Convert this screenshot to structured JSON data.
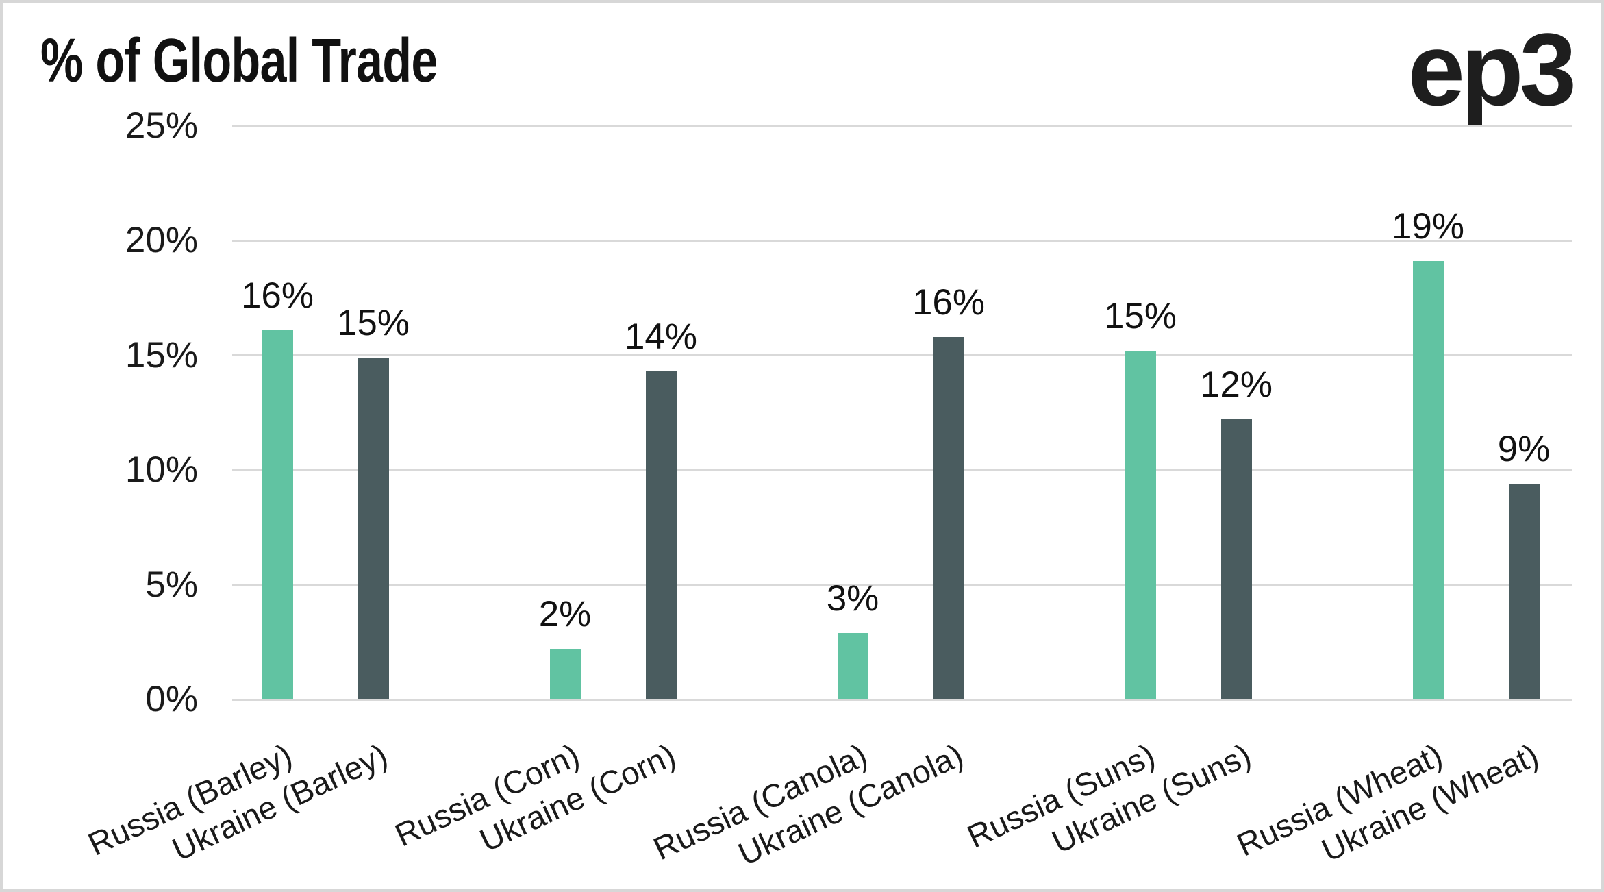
{
  "logo": {
    "text": "ep3"
  },
  "chart_data": {
    "type": "bar",
    "title": "% of Global Trade",
    "categories": [
      "Russia (Barley)",
      "Ukraine (Barley)",
      "Russia (Corn)",
      "Ukraine (Corn)",
      "Russia (Canola)",
      "Ukraine (Canola)",
      "Russia (Suns)",
      "Ukraine (Suns)",
      "Russia (Wheat)",
      "Ukraine (Wheat)"
    ],
    "values": [
      16,
      15,
      2,
      14,
      3,
      16,
      15,
      12,
      19,
      9
    ],
    "value_labels": [
      "16%",
      "15%",
      "2%",
      "14%",
      "3%",
      "16%",
      "15%",
      "12%",
      "19%",
      "9%"
    ],
    "values_precise": [
      16.1,
      14.9,
      2.2,
      14.3,
      2.9,
      15.8,
      15.2,
      12.2,
      19.1,
      9.4
    ],
    "bar_colors": [
      "#61C3A2",
      "#4A5C5F",
      "#61C3A2",
      "#4A5C5F",
      "#61C3A2",
      "#4A5C5F",
      "#61C3A2",
      "#4A5C5F",
      "#61C3A2",
      "#4A5C5F"
    ],
    "colors": {
      "russia_green": "#61C3A2",
      "ukraine_slate": "#4A5C5F",
      "gridline": "#D9D9D9",
      "text": "#141414"
    },
    "xlabel": "",
    "ylabel": "",
    "y_ticks": [
      "0%",
      "5%",
      "10%",
      "15%",
      "20%",
      "25%"
    ],
    "y_tick_values": [
      0,
      5,
      10,
      15,
      20,
      25
    ],
    "ylim": [
      0,
      25
    ],
    "grid": true,
    "legend": "none"
  }
}
